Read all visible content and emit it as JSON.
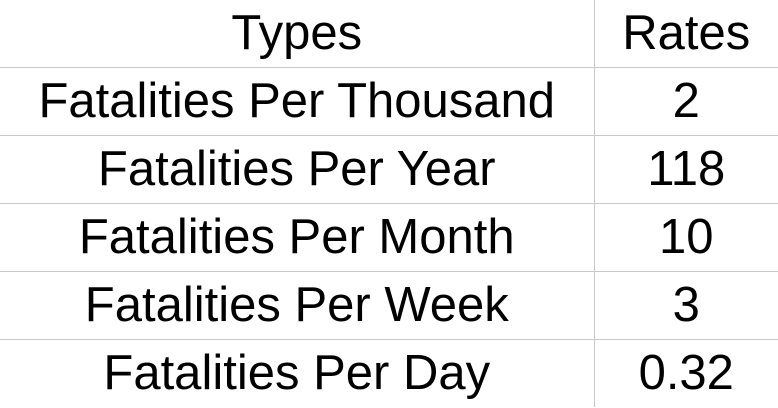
{
  "table": {
    "headers": [
      "Types",
      "Rates"
    ],
    "rows": [
      [
        "Fatalities Per Thousand",
        "2"
      ],
      [
        "Fatalities Per Year",
        "118"
      ],
      [
        "Fatalities Per Month",
        "10"
      ],
      [
        "Fatalities Per Week",
        "3"
      ],
      [
        "Fatalities Per Day",
        "0.32"
      ]
    ]
  },
  "colors": {
    "text": "#000000",
    "grid_line": "#c8c8c8",
    "background": "#ffffff"
  }
}
